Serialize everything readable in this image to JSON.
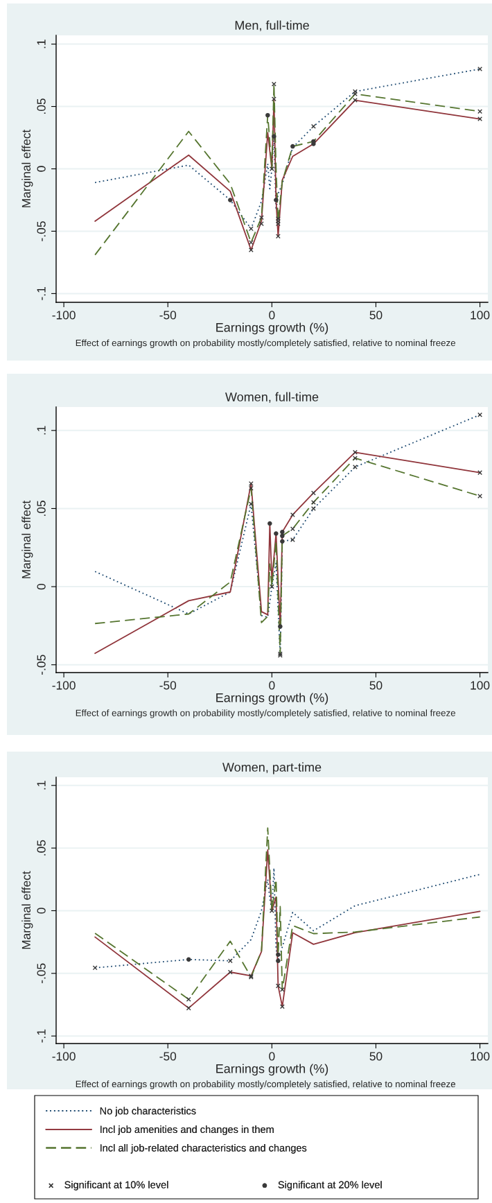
{
  "chart_data": [
    {
      "type": "line",
      "title": "Men, full-time",
      "xlabel": "Earnings growth (%)",
      "ylabel": "Marginal effect",
      "annotations": [
        "Effect of earnings growth on probability mostly/completely satisfied, relative to nominal freeze"
      ],
      "xlim": [
        -103.7,
        103.8
      ],
      "ylim": [
        -0.107,
        0.107
      ],
      "xticks": [
        -100,
        -50,
        0,
        50,
        100
      ],
      "yticks": [
        {
          "value": -0.1,
          "label": "-.1"
        },
        {
          "value": -0.05,
          "label": "-.05"
        },
        {
          "value": 0,
          "label": "0"
        },
        {
          "value": 0.05,
          "label": ".05"
        },
        {
          "value": 0.1,
          "label": ".1"
        }
      ],
      "grid": "y",
      "legend": false,
      "series": [
        {
          "color": "#1a476f",
          "line_style": "dotted",
          "marker": "none",
          "x": [
            -85,
            -40,
            -20,
            -10,
            -5,
            -2,
            -1,
            0,
            1,
            2,
            3,
            5,
            10,
            20,
            40,
            100
          ],
          "values": [
            -0.011,
            0.003,
            -0.025,
            -0.048,
            -0.026,
            0.004,
            -0.016,
            0,
            0.026,
            -0.033,
            -0.02,
            -0.012,
            0.017,
            0.034,
            0.062,
            0.08
          ]
        },
        {
          "color": "#90353b",
          "line_style": "solid",
          "marker": "none",
          "x": [
            -85,
            -40,
            -20,
            -10,
            -5,
            -2,
            0,
            1,
            2,
            3,
            5,
            10,
            20,
            40,
            100
          ],
          "values": [
            -0.042,
            0.011,
            -0.018,
            -0.065,
            -0.042,
            0.029,
            0,
            0.056,
            -0.025,
            -0.054,
            -0.009,
            0.01,
            0.02,
            0.055,
            0.04
          ]
        },
        {
          "color": "#55752f",
          "line_style": "dashed",
          "marker": "none",
          "x": [
            -85,
            -40,
            -20,
            -10,
            -5,
            -2,
            0,
            1,
            2,
            3,
            5,
            10,
            20,
            40,
            100
          ],
          "values": [
            -0.069,
            0.03,
            -0.012,
            -0.059,
            -0.039,
            0.043,
            0,
            0.068,
            0,
            -0.042,
            -0.01,
            0.018,
            0.022,
            0.06,
            0.046
          ]
        },
        {
          "type": "scatter",
          "color": "#3a3a3a",
          "marker": "cross",
          "x": [
            -10,
            -10,
            -10,
            -5,
            -5,
            0,
            1,
            1,
            3,
            3,
            3,
            3,
            20,
            40,
            40,
            40,
            100,
            100,
            100
          ],
          "values": [
            -0.048,
            -0.059,
            -0.065,
            -0.039,
            -0.044,
            0,
            0.068,
            0.056,
            -0.04,
            -0.042,
            -0.044,
            -0.054,
            0.034,
            0.062,
            0.06,
            0.055,
            0.08,
            0.046,
            0.04
          ]
        },
        {
          "type": "scatter",
          "color": "#3a3a3a",
          "marker": "circle",
          "x": [
            -20,
            -2,
            1,
            2,
            10,
            20,
            20
          ],
          "values": [
            -0.025,
            0.043,
            0.026,
            -0.025,
            0.018,
            0.022,
            0.02
          ]
        }
      ]
    },
    {
      "type": "line",
      "title": "Women, full-time",
      "xlabel": "Earnings growth (%)",
      "ylabel": "Marginal effect",
      "annotations": [
        "Effect of earnings growth on probability mostly/completely satisfied, relative to nominal freeze"
      ],
      "xlim": [
        -103.7,
        103.8
      ],
      "ylim": [
        -0.055,
        0.115
      ],
      "xticks": [
        -100,
        -50,
        0,
        50,
        100
      ],
      "yticks": [
        {
          "value": -0.05,
          "label": "-.05"
        },
        {
          "value": 0,
          "label": "0"
        },
        {
          "value": 0.05,
          "label": ".05"
        },
        {
          "value": 0.1,
          "label": ".1"
        }
      ],
      "grid": "y",
      "legend": false,
      "series": [
        {
          "color": "#1a476f",
          "line_style": "dotted",
          "marker": "none",
          "x": [
            -85,
            -40,
            -20,
            -10,
            -5,
            -2,
            0,
            2,
            4,
            5,
            10,
            20,
            40,
            100
          ],
          "values": [
            0.0097,
            -0.0175,
            -0.0034,
            0.053,
            -0.0185,
            -0.0196,
            0,
            0.015,
            -0.044,
            0.029,
            0.03,
            0.05,
            0.0766,
            0.11
          ]
        },
        {
          "color": "#90353b",
          "line_style": "solid",
          "marker": "none",
          "x": [
            -85,
            -40,
            -20,
            -10,
            -5,
            -2,
            -1,
            0,
            2,
            4,
            5,
            10,
            20,
            40,
            100
          ],
          "values": [
            -0.0427,
            -0.009,
            -0.0034,
            0.066,
            -0.016,
            -0.018,
            0.0404,
            0.004,
            0.034,
            -0.0255,
            0.035,
            0.046,
            0.06,
            0.086,
            0.073
          ]
        },
        {
          "color": "#55752f",
          "line_style": "dashed",
          "marker": "none",
          "x": [
            -85,
            -40,
            -20,
            -10,
            -5,
            -2,
            -1,
            0,
            2,
            4,
            5,
            10,
            20,
            40,
            100
          ],
          "values": [
            -0.0236,
            -0.0175,
            0.003,
            0.063,
            -0.023,
            -0.019,
            0.0145,
            0,
            0.029,
            -0.043,
            0.0325,
            0.037,
            0.054,
            0.0823,
            0.058
          ]
        },
        {
          "type": "scatter",
          "color": "#3a3a3a",
          "marker": "cross",
          "x": [
            -10,
            -10,
            -10,
            0,
            4,
            4,
            10,
            10,
            10,
            20,
            20,
            20,
            40,
            40,
            40,
            100,
            100,
            100
          ],
          "values": [
            0.066,
            0.063,
            0.053,
            0,
            -0.043,
            -0.044,
            0.046,
            0.037,
            0.03,
            0.06,
            0.054,
            0.05,
            0.086,
            0.0823,
            0.0766,
            0.11,
            0.073,
            0.058
          ]
        },
        {
          "type": "scatter",
          "color": "#3a3a3a",
          "marker": "circle",
          "x": [
            -1,
            2,
            4,
            5,
            5,
            5
          ],
          "values": [
            0.0404,
            0.034,
            -0.0255,
            0.035,
            0.0325,
            0.029
          ]
        }
      ]
    },
    {
      "type": "line",
      "title": "Women, part-time",
      "xlabel": "Earnings growth (%)",
      "ylabel": "Marginal effect",
      "annotations": [
        "Effect of earnings growth on probability mostly/completely satisfied, relative to nominal freeze"
      ],
      "xlim": [
        -103.7,
        103.8
      ],
      "ylim": [
        -0.106,
        0.1065
      ],
      "xticks": [
        -100,
        -50,
        0,
        50,
        100
      ],
      "yticks": [
        {
          "value": -0.1,
          "label": "-.1"
        },
        {
          "value": -0.05,
          "label": "-.05"
        },
        {
          "value": 0,
          "label": "0"
        },
        {
          "value": 0.05,
          "label": ".05"
        },
        {
          "value": 0.1,
          "label": ".1"
        }
      ],
      "grid": "y",
      "legend": "bottom",
      "series": [
        {
          "name": "No job characteristics",
          "color": "#1a476f",
          "line_style": "dotted",
          "marker": "none",
          "x": [
            -85,
            -40,
            -20,
            -10,
            -5,
            -2,
            -1,
            0,
            1,
            2,
            3,
            5,
            10,
            20,
            40,
            100
          ],
          "values": [
            -0.0456,
            -0.0389,
            -0.04,
            -0.023,
            0,
            0.025,
            0.01,
            0,
            0.034,
            -0.03,
            -0.04,
            -0.029,
            -0.0013,
            -0.016,
            0.004,
            0.029
          ]
        },
        {
          "name": "Incl job amenities and changes in them",
          "color": "#90353b",
          "line_style": "solid",
          "marker": "none",
          "x": [
            -85,
            -40,
            -20,
            -10,
            -5,
            -2,
            0,
            2,
            3,
            5,
            10,
            20,
            40,
            100
          ],
          "values": [
            -0.021,
            -0.0777,
            -0.049,
            -0.052,
            -0.0326,
            0.0486,
            0,
            0.011,
            -0.06,
            -0.0765,
            -0.0176,
            -0.0268,
            -0.0175,
            -0.0005
          ]
        },
        {
          "name": "Incl all job-related characteristics and changes",
          "color": "#55752f",
          "line_style": "dashed",
          "marker": "none",
          "x": [
            -85,
            -40,
            -20,
            -10,
            -5,
            -2,
            0,
            2,
            3,
            4,
            5,
            10,
            20,
            40,
            100
          ],
          "values": [
            -0.018,
            -0.0707,
            -0.0243,
            -0.053,
            -0.032,
            0.066,
            0,
            0.025,
            -0.035,
            0.0033,
            -0.063,
            -0.0118,
            -0.0183,
            -0.017,
            -0.005
          ]
        },
        {
          "name": "Significant at 10% level",
          "type": "scatter",
          "color": "#3a3a3a",
          "marker": "cross",
          "x": [
            -85,
            -40,
            -40,
            -20,
            -20,
            -10,
            -10,
            0,
            3,
            5,
            5
          ],
          "values": [
            -0.0456,
            -0.0707,
            -0.0777,
            -0.04,
            -0.049,
            -0.052,
            -0.053,
            0,
            -0.06,
            -0.063,
            -0.0765
          ]
        },
        {
          "name": "Significant at 20% level",
          "type": "scatter",
          "color": "#3a3a3a",
          "marker": "circle",
          "x": [
            -40,
            3,
            3
          ],
          "values": [
            -0.0389,
            -0.035,
            -0.04
          ]
        }
      ]
    }
  ]
}
